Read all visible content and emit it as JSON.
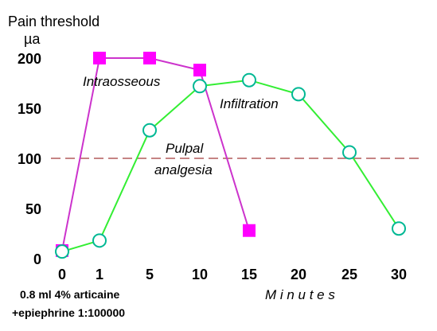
{
  "chart_data": {
    "type": "line",
    "ylabel_line1": "Pain threshold",
    "ylabel_line2": "µa",
    "xlabel": "M i n u t e s",
    "x_ticks": [
      "0",
      "1",
      "5",
      "10",
      "15",
      "20",
      "25",
      "30"
    ],
    "y_ticks": [
      "0",
      "50",
      "100",
      "150",
      "200"
    ],
    "ylim": [
      0,
      200
    ],
    "grid": false,
    "reference_line": {
      "y": 100,
      "label_line1": "Pulpal",
      "label_line2": "analgesia",
      "color": "#a33a3a"
    },
    "series": [
      {
        "name": "Intraosseous",
        "marker": "square",
        "color": "#ff00ff",
        "line_color": "#cc33cc",
        "points": [
          {
            "x": "0",
            "y": 8
          },
          {
            "x": "1",
            "y": 200
          },
          {
            "x": "5",
            "y": 200
          },
          {
            "x": "10",
            "y": 188
          },
          {
            "x": "15",
            "y": 28
          }
        ]
      },
      {
        "name": "Infiltration",
        "marker": "circle",
        "color": "#00b894",
        "line_color": "#33ee33",
        "points": [
          {
            "x": "0",
            "y": 7
          },
          {
            "x": "1",
            "y": 18
          },
          {
            "x": "5",
            "y": 128
          },
          {
            "x": "10",
            "y": 172
          },
          {
            "x": "15",
            "y": 178
          },
          {
            "x": "20",
            "y": 164
          },
          {
            "x": "25",
            "y": 106
          },
          {
            "x": "30",
            "y": 30
          }
        ]
      }
    ],
    "annotation_line1": "0.8 ml 4% articaine",
    "annotation_line2": "+epiephrine 1:100000"
  }
}
